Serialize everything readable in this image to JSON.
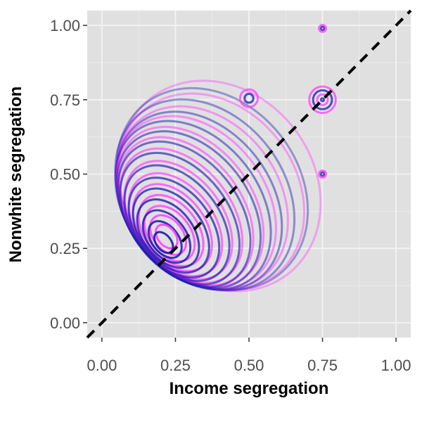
{
  "chart_data": {
    "type": "contour",
    "xlabel": "Income segregation",
    "ylabel": "Nonwhite segregation",
    "xlim": [
      -0.05,
      1.05
    ],
    "ylim": [
      -0.05,
      1.05
    ],
    "x_ticks": [
      0.0,
      0.25,
      0.5,
      0.75,
      1.0
    ],
    "y_ticks": [
      0.0,
      0.25,
      0.5,
      0.75,
      1.0
    ],
    "x_tick_labels": [
      "0.00",
      "0.25",
      "0.50",
      "0.75",
      "1.00"
    ],
    "y_tick_labels": [
      "0.00",
      "0.25",
      "0.50",
      "0.75",
      "1.00"
    ],
    "grid": true,
    "background": "#e0e0e0",
    "reference_line": {
      "slope": 1,
      "intercept": 0,
      "style": "dashed",
      "color": "#000000"
    },
    "series": [
      {
        "color": "#ff3fff",
        "peak": [
          0.22,
          0.28
        ],
        "contour_levels": 14,
        "contours": [
          {
            "cx": 0.22,
            "cy": 0.29,
            "rx": 0.03,
            "ry": 0.045
          },
          {
            "cx": 0.225,
            "cy": 0.295,
            "rx": 0.05,
            "ry": 0.075
          },
          {
            "cx": 0.23,
            "cy": 0.3,
            "rx": 0.07,
            "ry": 0.105
          },
          {
            "cx": 0.235,
            "cy": 0.31,
            "rx": 0.09,
            "ry": 0.135
          },
          {
            "cx": 0.24,
            "cy": 0.32,
            "rx": 0.11,
            "ry": 0.165
          },
          {
            "cx": 0.25,
            "cy": 0.33,
            "rx": 0.13,
            "ry": 0.195
          },
          {
            "cx": 0.26,
            "cy": 0.345,
            "rx": 0.15,
            "ry": 0.225
          },
          {
            "cx": 0.27,
            "cy": 0.36,
            "rx": 0.17,
            "ry": 0.255
          },
          {
            "cx": 0.285,
            "cy": 0.375,
            "rx": 0.19,
            "ry": 0.28
          },
          {
            "cx": 0.3,
            "cy": 0.39,
            "rx": 0.21,
            "ry": 0.3
          },
          {
            "cx": 0.32,
            "cy": 0.405,
            "rx": 0.235,
            "ry": 0.32
          },
          {
            "cx": 0.34,
            "cy": 0.42,
            "rx": 0.26,
            "ry": 0.335
          },
          {
            "cx": 0.37,
            "cy": 0.44,
            "rx": 0.29,
            "ry": 0.355
          },
          {
            "cx": 0.4,
            "cy": 0.46,
            "rx": 0.32,
            "ry": 0.375
          }
        ]
      },
      {
        "color": "#1a1ab0",
        "peak": [
          0.21,
          0.27
        ],
        "contour_levels": 14,
        "contours": [
          {
            "cx": 0.21,
            "cy": 0.27,
            "rx": 0.025,
            "ry": 0.04
          },
          {
            "cx": 0.215,
            "cy": 0.28,
            "rx": 0.045,
            "ry": 0.07
          },
          {
            "cx": 0.22,
            "cy": 0.29,
            "rx": 0.065,
            "ry": 0.1
          },
          {
            "cx": 0.225,
            "cy": 0.3,
            "rx": 0.085,
            "ry": 0.13
          },
          {
            "cx": 0.235,
            "cy": 0.31,
            "rx": 0.105,
            "ry": 0.16
          },
          {
            "cx": 0.245,
            "cy": 0.32,
            "rx": 0.125,
            "ry": 0.19
          },
          {
            "cx": 0.255,
            "cy": 0.335,
            "rx": 0.145,
            "ry": 0.22
          },
          {
            "cx": 0.265,
            "cy": 0.35,
            "rx": 0.165,
            "ry": 0.25
          },
          {
            "cx": 0.28,
            "cy": 0.365,
            "rx": 0.185,
            "ry": 0.275
          },
          {
            "cx": 0.295,
            "cy": 0.38,
            "rx": 0.205,
            "ry": 0.295
          },
          {
            "cx": 0.31,
            "cy": 0.395,
            "rx": 0.225,
            "ry": 0.315
          },
          {
            "cx": 0.33,
            "cy": 0.41,
            "rx": 0.245,
            "ry": 0.33
          },
          {
            "cx": 0.35,
            "cy": 0.43,
            "rx": 0.27,
            "ry": 0.35
          },
          {
            "cx": 0.375,
            "cy": 0.45,
            "rx": 0.295,
            "ry": 0.365
          }
        ]
      }
    ],
    "secondary_modes": [
      {
        "x": 0.75,
        "y": 0.75,
        "radii": [
          0.005,
          0.018,
          0.032,
          0.045
        ]
      },
      {
        "x": 0.75,
        "y": 0.5,
        "radii": [
          0.006,
          0.012
        ]
      },
      {
        "x": 0.75,
        "y": 0.99,
        "radii": [
          0.006,
          0.012
        ]
      },
      {
        "x": 0.5,
        "y": 0.755,
        "radii": [
          0.015,
          0.03
        ]
      }
    ]
  }
}
